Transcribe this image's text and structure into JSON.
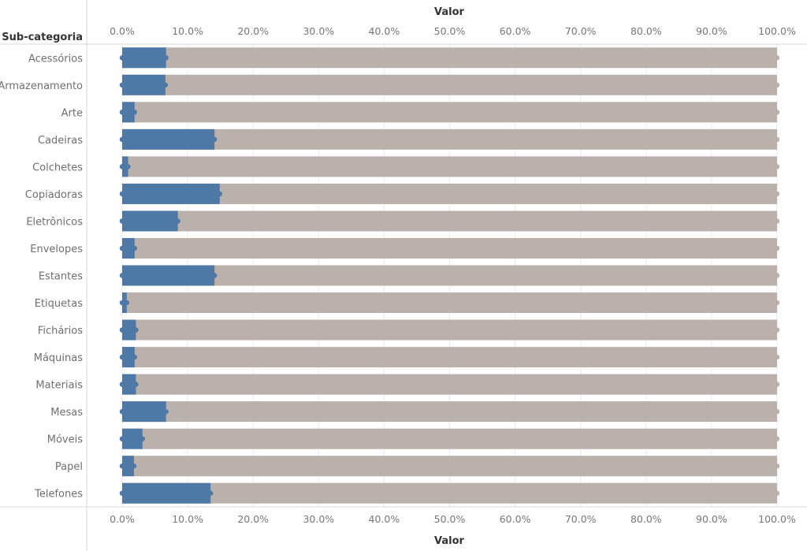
{
  "chart_data": {
    "type": "bar",
    "row_title": "Sub-categoria",
    "xlabel": "Valor",
    "xlim": [
      0,
      1
    ],
    "grid": true,
    "x_ticks": [
      {
        "value": 0.0,
        "label": "0.0%"
      },
      {
        "value": 0.1,
        "label": "10.0%"
      },
      {
        "value": 0.2,
        "label": "20.0%"
      },
      {
        "value": 0.3,
        "label": "30.0%"
      },
      {
        "value": 0.4,
        "label": "40.0%"
      },
      {
        "value": 0.5,
        "label": "50.0%"
      },
      {
        "value": 0.6,
        "label": "60.0%"
      },
      {
        "value": 0.7,
        "label": "70.0%"
      },
      {
        "value": 0.8,
        "label": "80.0%"
      },
      {
        "value": 0.9,
        "label": "90.0%"
      },
      {
        "value": 1.0,
        "label": "100.0%"
      }
    ],
    "categories": [
      "Acessórios",
      "Armazenamento",
      "Arte",
      "Cadeiras",
      "Colchetes",
      "Copiadoras",
      "Eletrônicos",
      "Envelopes",
      "Estantes",
      "Etiquetas",
      "Fichários",
      "Máquinas",
      "Materiais",
      "Mesas",
      "Móveis",
      "Papel",
      "Telefones"
    ],
    "series": [
      {
        "values": [
          1,
          1,
          1,
          1,
          1,
          1,
          1,
          1,
          1,
          1,
          1,
          1,
          1,
          1,
          1,
          1,
          1
        ],
        "color": "#bab0ac"
      },
      {
        "values": [
          0.067,
          0.066,
          0.019,
          0.141,
          0.009,
          0.149,
          0.085,
          0.019,
          0.141,
          0.007,
          0.021,
          0.019,
          0.021,
          0.067,
          0.031,
          0.018,
          0.135
        ],
        "color": "#4e79a7"
      }
    ]
  }
}
